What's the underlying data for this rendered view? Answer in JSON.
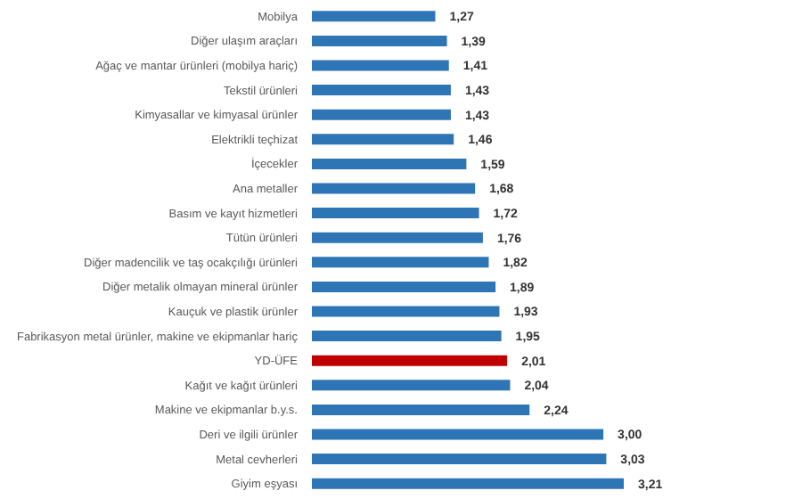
{
  "chart_data": {
    "type": "bar",
    "orientation": "horizontal",
    "value_labels": [
      "1,27",
      "1,39",
      "1,41",
      "1,43",
      "1,43",
      "1,46",
      "1,59",
      "1,68",
      "1,72",
      "1,76",
      "1,82",
      "1,89",
      "1,93",
      "1,95",
      "2,01",
      "2,04",
      "2,24",
      "3,00",
      "3,03",
      "3,21"
    ],
    "categories": [
      "Mobilya",
      "Diğer ulaşım araçları",
      "Ağaç ve mantar ürünleri (mobilya hariç)",
      "Tekstil ürünleri",
      "Kimyasallar ve kimyasal ürünler",
      "Elektrikli teçhizat",
      "İçecekler",
      "Ana metaller",
      "Basım ve kayıt hizmetleri",
      "Tütün ürünleri",
      "Diğer madencilik ve taş ocakçılığı ürünleri",
      "Diğer metalik olmayan mineral ürünler",
      "Kauçuk ve plastik ürünler",
      "Fabrikasyon metal ürünler, makine ve ekipmanlar hariç",
      "YD-ÜFE",
      "Kağıt ve kağıt ürünleri",
      "Makine ve ekipmanlar b.y.s.",
      "Deri ve ilgili ürünler",
      "Metal cevherleri",
      "Giyim eşyası"
    ],
    "values": [
      1.27,
      1.39,
      1.41,
      1.43,
      1.43,
      1.46,
      1.59,
      1.68,
      1.72,
      1.76,
      1.82,
      1.89,
      1.93,
      1.95,
      2.01,
      2.04,
      2.24,
      3.0,
      3.03,
      3.21
    ],
    "colors": [
      "#2e75b6",
      "#2e75b6",
      "#2e75b6",
      "#2e75b6",
      "#2e75b6",
      "#2e75b6",
      "#2e75b6",
      "#2e75b6",
      "#2e75b6",
      "#2e75b6",
      "#2e75b6",
      "#2e75b6",
      "#2e75b6",
      "#2e75b6",
      "#c00000",
      "#2e75b6",
      "#2e75b6",
      "#2e75b6",
      "#2e75b6",
      "#2e75b6"
    ]
  }
}
